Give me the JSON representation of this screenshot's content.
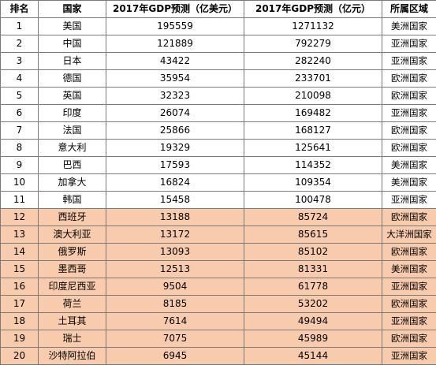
{
  "table": {
    "headers": {
      "rank": "排名",
      "country": "国家",
      "gdp_usd": "2017年GDP预测（亿美元）",
      "gdp_cny": "2017年GDP预测（亿元）",
      "region": "所属区域"
    },
    "highlight_color": "#f8cbad",
    "highlighted_ranks": [
      "12",
      "13",
      "14",
      "15",
      "16",
      "17",
      "18",
      "19",
      "20"
    ],
    "rows": [
      {
        "rank": "1",
        "country": "美国",
        "gdp_usd": "195559",
        "gdp_cny": "1271132",
        "region": "美洲国家"
      },
      {
        "rank": "2",
        "country": "中国",
        "gdp_usd": "121889",
        "gdp_cny": "792279",
        "region": "亚洲国家"
      },
      {
        "rank": "3",
        "country": "日本",
        "gdp_usd": "43422",
        "gdp_cny": "282240",
        "region": "亚洲国家"
      },
      {
        "rank": "4",
        "country": "德国",
        "gdp_usd": "35954",
        "gdp_cny": "233701",
        "region": "欧洲国家"
      },
      {
        "rank": "5",
        "country": "英国",
        "gdp_usd": "32323",
        "gdp_cny": "210098",
        "region": "欧洲国家"
      },
      {
        "rank": "6",
        "country": "印度",
        "gdp_usd": "26074",
        "gdp_cny": "169482",
        "region": "亚洲国家"
      },
      {
        "rank": "7",
        "country": "法国",
        "gdp_usd": "25866",
        "gdp_cny": "168127",
        "region": "欧洲国家"
      },
      {
        "rank": "8",
        "country": "意大利",
        "gdp_usd": "19329",
        "gdp_cny": "125641",
        "region": "欧洲国家"
      },
      {
        "rank": "9",
        "country": "巴西",
        "gdp_usd": "17593",
        "gdp_cny": "114352",
        "region": "美洲国家"
      },
      {
        "rank": "10",
        "country": "加拿大",
        "gdp_usd": "16824",
        "gdp_cny": "109354",
        "region": "美洲国家"
      },
      {
        "rank": "11",
        "country": "韩国",
        "gdp_usd": "15458",
        "gdp_cny": "100478",
        "region": "亚洲国家"
      },
      {
        "rank": "12",
        "country": "西班牙",
        "gdp_usd": "13188",
        "gdp_cny": "85724",
        "region": "欧洲国家"
      },
      {
        "rank": "13",
        "country": "澳大利亚",
        "gdp_usd": "13172",
        "gdp_cny": "85615",
        "region": "大洋洲国家"
      },
      {
        "rank": "14",
        "country": "俄罗斯",
        "gdp_usd": "13093",
        "gdp_cny": "85102",
        "region": "欧洲国家"
      },
      {
        "rank": "15",
        "country": "墨西哥",
        "gdp_usd": "12513",
        "gdp_cny": "81331",
        "region": "美洲国家"
      },
      {
        "rank": "16",
        "country": "印度尼西亚",
        "gdp_usd": "9504",
        "gdp_cny": "61778",
        "region": "亚洲国家"
      },
      {
        "rank": "17",
        "country": "荷兰",
        "gdp_usd": "8185",
        "gdp_cny": "53202",
        "region": "欧洲国家"
      },
      {
        "rank": "18",
        "country": "土耳其",
        "gdp_usd": "7614",
        "gdp_cny": "49494",
        "region": "亚洲国家"
      },
      {
        "rank": "19",
        "country": "瑞士",
        "gdp_usd": "7075",
        "gdp_cny": "45989",
        "region": "欧洲国家"
      },
      {
        "rank": "20",
        "country": "沙特阿拉伯",
        "gdp_usd": "6945",
        "gdp_cny": "45144",
        "region": "亚洲国家"
      }
    ]
  }
}
